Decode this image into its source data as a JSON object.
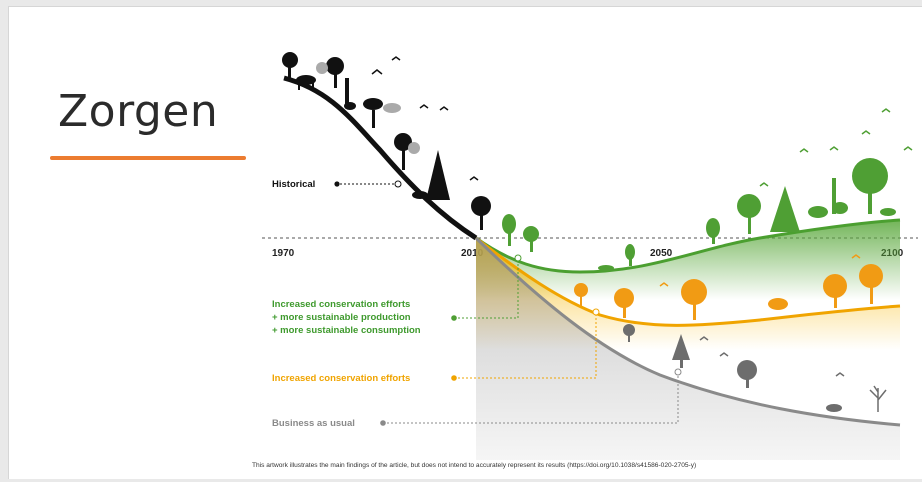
{
  "slide": {
    "title": "Zorgen",
    "accent_color": "#ec7c30"
  },
  "figure": {
    "timeline_years": [
      "1970",
      "2010",
      "2050",
      "2100"
    ],
    "scenarios": {
      "historical": {
        "label": "Historical",
        "color": "#111111"
      },
      "green": {
        "lines": [
          "Increased conservation efforts",
          "+ more sustainable production",
          "+ more sustainable consumption"
        ],
        "color": "#3f9a2e"
      },
      "orange": {
        "label": "Increased conservation efforts",
        "color": "#f0a400"
      },
      "grey": {
        "label": "Business as usual",
        "color": "#8a8a8a"
      }
    },
    "caption": "This artwork illustrates the main findings of the article, but does not intend to accurately represent its results (https://doi.org/10.1038/s41586-020-2705-y)",
    "icons": [
      "tree-icon",
      "animal-icon",
      "bird-icon"
    ]
  }
}
